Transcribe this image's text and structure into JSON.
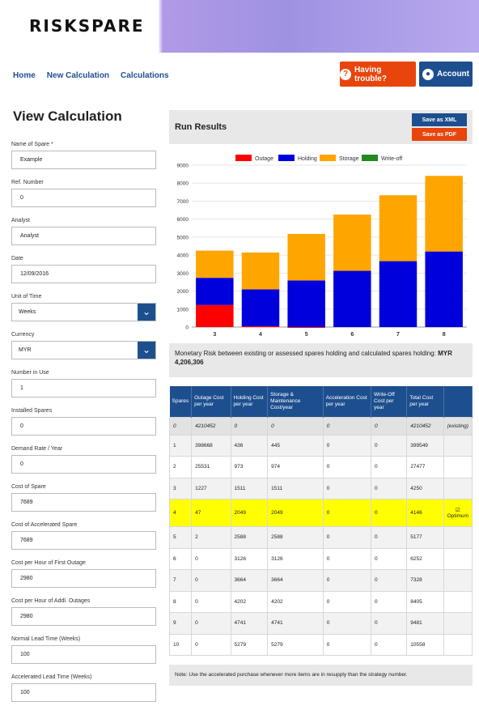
{
  "header": {
    "logo_text": "RISKSPARE"
  },
  "nav": {
    "items": [
      "Home",
      "New Calculation",
      "Calculations"
    ]
  },
  "buttons": {
    "trouble": "Having trouble?",
    "account": "Account",
    "save_xml": "Save as XML",
    "save_pdf": "Save as PDF"
  },
  "page_title": "View Calculation",
  "form": {
    "fields": [
      {
        "label": "Name of Spare *",
        "value": "Example",
        "type": "input"
      },
      {
        "label": "Ref. Number",
        "value": "0",
        "type": "input"
      },
      {
        "label": "Analyst",
        "value": "Analyst",
        "type": "input"
      },
      {
        "label": "Date",
        "value": "12/09/2016",
        "type": "input"
      },
      {
        "label": "Unit of Time",
        "value": "Weeks",
        "type": "select"
      },
      {
        "label": "Currency",
        "value": "MYR",
        "type": "select"
      },
      {
        "label": "Number in Use",
        "value": "1",
        "type": "input"
      },
      {
        "label": "Installed Spares",
        "value": "0",
        "type": "input"
      },
      {
        "label": "Demand Rate / Year",
        "value": "0",
        "type": "input"
      },
      {
        "label": "Cost of Spare",
        "value": "7689",
        "type": "input"
      },
      {
        "label": "Cost of Accelerated Spare",
        "value": "7689",
        "type": "input"
      },
      {
        "label": "Cost per Hour of First Outage",
        "value": "2980",
        "type": "input"
      },
      {
        "label": "Cost per Hour of Addl. Outages",
        "value": "2980",
        "type": "input"
      },
      {
        "label": "Normal Lead Time (Weeks)",
        "value": "100",
        "type": "input"
      },
      {
        "label": "Accelerated Lead Time (Weeks)",
        "value": "100",
        "type": "input"
      }
    ]
  },
  "results": {
    "title": "Run Results",
    "risk_text": "Monetary Risk between existing or assessed spares holding and calculated spares holding:",
    "risk_value": "MYR 4,206,306",
    "note": "Note: Use the accelerated purchase whenever more items are in resupply than the strategy number."
  },
  "table": {
    "headers": [
      "Spares",
      "Outage Cost per year",
      "Holding Cost per year",
      "Storage & Maintenance Cost/year",
      "Acceleration Cost per year",
      "Write-Off Cost per year",
      "Total Cost per year",
      ""
    ],
    "rows": [
      [
        "0",
        "4210452",
        "0",
        "0",
        "0",
        "0",
        "4210452",
        "(existing)"
      ],
      [
        "1",
        "398668",
        "436",
        "445",
        "0",
        "0",
        "399549",
        ""
      ],
      [
        "2",
        "25531",
        "973",
        "974",
        "0",
        "0",
        "27477",
        ""
      ],
      [
        "3",
        "1227",
        "1511",
        "1511",
        "0",
        "0",
        "4250",
        ""
      ],
      [
        "4",
        "47",
        "2049",
        "2049",
        "0",
        "0",
        "4146",
        "Optimum"
      ],
      [
        "5",
        "2",
        "2588",
        "2588",
        "0",
        "0",
        "5177",
        ""
      ],
      [
        "6",
        "0",
        "3126",
        "3126",
        "0",
        "0",
        "6252",
        ""
      ],
      [
        "7",
        "0",
        "3664",
        "3664",
        "0",
        "0",
        "7328",
        ""
      ],
      [
        "8",
        "0",
        "4202",
        "4202",
        "0",
        "0",
        "8405",
        ""
      ],
      [
        "9",
        "0",
        "4741",
        "4741",
        "0",
        "0",
        "9481",
        ""
      ],
      [
        "10",
        "0",
        "5279",
        "5279",
        "0",
        "0",
        "10558",
        ""
      ]
    ]
  },
  "colors": {
    "outage": "#ff0000",
    "holding": "#0000dd",
    "storage": "#ffa500",
    "writeoff": "#228b22",
    "primary": "#1d4f8f",
    "accent": "#e8450d"
  },
  "chart_data": {
    "type": "bar",
    "stacked": true,
    "categories": [
      "3",
      "4",
      "5",
      "6",
      "7",
      "8"
    ],
    "series": [
      {
        "name": "Outage",
        "values": [
          1227,
          47,
          2,
          0,
          0,
          0
        ]
      },
      {
        "name": "Holding",
        "values": [
          1511,
          2049,
          2588,
          3126,
          3664,
          4202
        ]
      },
      {
        "name": "Storage",
        "values": [
          1511,
          2049,
          2588,
          3126,
          3664,
          4202
        ]
      },
      {
        "name": "Write-off",
        "values": [
          0,
          0,
          0,
          0,
          0,
          0
        ]
      }
    ],
    "ylim": [
      0,
      9000
    ],
    "yticks": [
      0,
      1000,
      2000,
      3000,
      4000,
      5000,
      6000,
      7000,
      8000,
      9000
    ],
    "legend": "top"
  }
}
